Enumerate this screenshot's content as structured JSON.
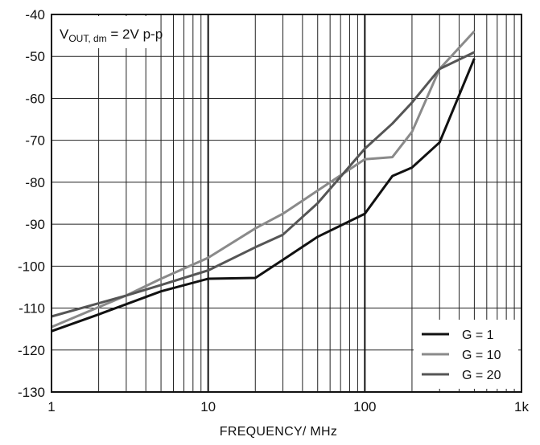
{
  "chart_data": {
    "type": "line",
    "title": "",
    "xlabel": "FREQUENCY/ MHz",
    "ylabel": "",
    "xscale": "log",
    "xlim": [
      1,
      1000
    ],
    "ylim": [
      -130,
      -40
    ],
    "grid": true,
    "legend_position": "bottom-right",
    "x_tick_labels": [
      "1",
      "10",
      "100",
      "1k"
    ],
    "y_tick_labels": [
      "-40",
      "-50",
      "-60",
      "-70",
      "-80",
      "-90",
      "-100",
      "-110",
      "-120",
      "-130"
    ],
    "annotation": {
      "main": "V",
      "subscript": "OUT, dm",
      "rest": " = 2V p-p"
    },
    "series": [
      {
        "name": "G = 1",
        "color": "#111111",
        "x": [
          1,
          2,
          5,
          10,
          20,
          30,
          50,
          100,
          150,
          200,
          300,
          500
        ],
        "y": [
          -115.5,
          -111.5,
          -106,
          -103,
          -102.8,
          -98.5,
          -93,
          -87.5,
          -78.5,
          -76.5,
          -70.5,
          -50.5
        ]
      },
      {
        "name": "G = 10",
        "color": "#8a8a8a",
        "x": [
          1,
          3,
          5,
          10,
          20,
          30,
          50,
          100,
          150,
          200,
          300,
          500
        ],
        "y": [
          -114.5,
          -107,
          -103,
          -98,
          -91,
          -87.5,
          -82,
          -74.5,
          -74,
          -68,
          -53,
          -44
        ]
      },
      {
        "name": "G = 20",
        "color": "#555555",
        "x": [
          1,
          3,
          5,
          10,
          20,
          30,
          50,
          100,
          150,
          200,
          300,
          500
        ],
        "y": [
          -112,
          -107,
          -104.5,
          -101,
          -95.5,
          -92.5,
          -85,
          -72,
          -66,
          -61,
          -53,
          -49
        ]
      }
    ]
  }
}
